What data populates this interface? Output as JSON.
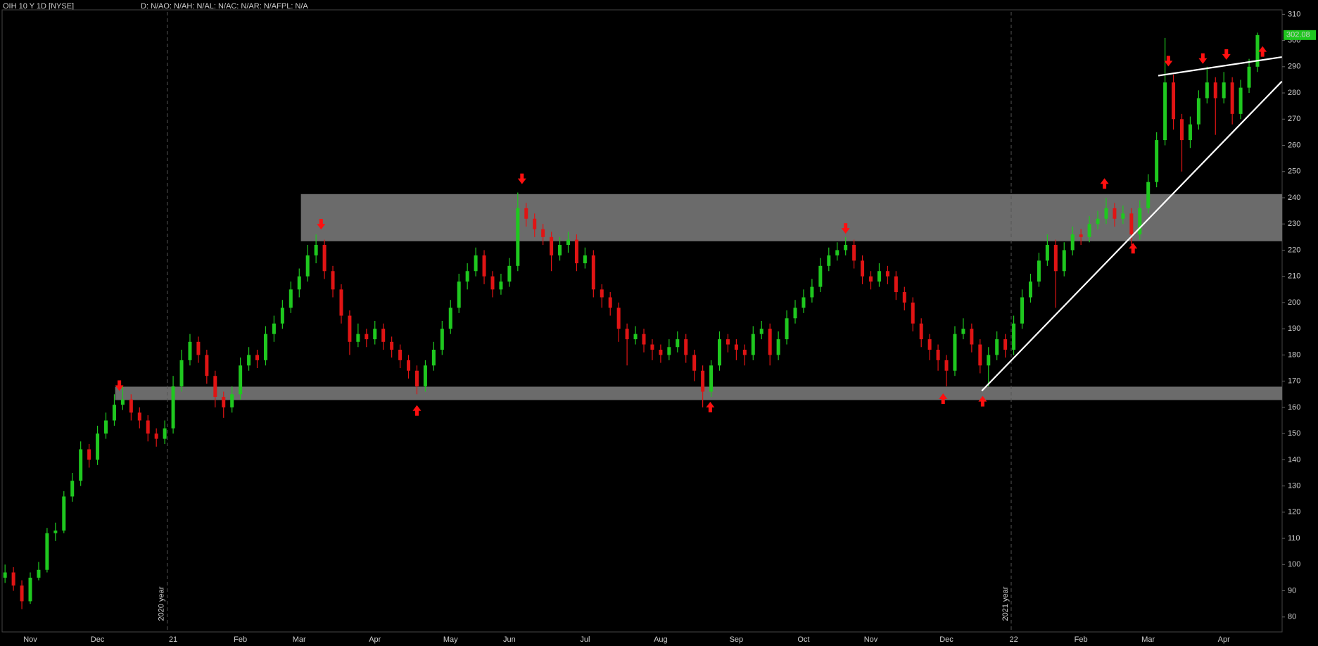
{
  "chart_data": {
    "type": "candlestick",
    "title": "OIH 10 Y 1D [NYSE]",
    "subtitle": "D: N/AO: N/AH: N/AL: N/AC: N/AR: N/AFPL: N/A",
    "categories": [
      null,
      null,
      null,
      "Nov",
      null,
      null,
      null,
      null,
      null,
      null,
      null,
      "Dec",
      null,
      null,
      null,
      null,
      null,
      null,
      null,
      null,
      "21",
      null,
      null,
      null,
      null,
      null,
      null,
      null,
      "Feb",
      null,
      null,
      null,
      null,
      null,
      null,
      "Mar",
      null,
      null,
      null,
      null,
      null,
      null,
      null,
      null,
      "Apr",
      null,
      null,
      null,
      null,
      null,
      null,
      null,
      null,
      "May",
      null,
      null,
      null,
      null,
      null,
      null,
      "Jun",
      null,
      null,
      null,
      null,
      null,
      null,
      null,
      null,
      "Jul",
      null,
      null,
      null,
      null,
      null,
      null,
      null,
      null,
      "Aug",
      null,
      null,
      null,
      null,
      null,
      null,
      null,
      null,
      "Sep",
      null,
      null,
      null,
      null,
      null,
      null,
      null,
      "Oct",
      null,
      null,
      null,
      null,
      null,
      null,
      null,
      "Nov",
      null,
      null,
      null,
      null,
      null,
      null,
      null,
      null,
      "Dec",
      null,
      null,
      null,
      null,
      null,
      null,
      null,
      "22",
      null,
      null,
      null,
      null,
      null,
      null,
      null,
      "Feb",
      null,
      null,
      null,
      null,
      null,
      null,
      null,
      "Mar",
      null,
      null,
      null,
      null,
      null,
      null,
      null,
      null,
      "Apr",
      null,
      null,
      null,
      null
    ],
    "open": [
      95,
      97,
      92,
      86,
      95,
      98,
      112,
      113,
      126,
      132,
      144,
      140,
      150,
      155,
      161,
      163,
      158,
      155,
      150,
      148,
      152,
      168,
      178,
      185,
      180,
      172,
      164,
      160,
      165,
      176,
      180,
      178,
      188,
      192,
      198,
      205,
      210,
      218,
      222,
      212,
      205,
      195,
      185,
      188,
      186,
      190,
      185,
      182,
      178,
      174,
      168,
      176,
      182,
      190,
      198,
      208,
      212,
      218,
      210,
      205,
      208,
      214,
      236,
      232,
      228,
      225,
      218,
      222,
      224,
      215,
      218,
      205,
      202,
      198,
      190,
      186,
      188,
      184,
      182,
      180,
      183,
      186,
      180,
      174,
      166,
      176,
      186,
      184,
      182,
      180,
      188,
      190,
      180,
      186,
      194,
      198,
      202,
      206,
      214,
      218,
      220,
      222,
      216,
      210,
      208,
      212,
      210,
      204,
      200,
      192,
      186,
      182,
      178,
      174,
      188,
      190,
      184,
      176,
      180,
      186,
      182,
      192,
      202,
      208,
      216,
      222,
      212,
      220,
      226,
      225,
      230,
      232,
      236,
      232,
      234,
      226,
      236,
      246,
      262,
      284,
      270,
      262,
      268,
      278,
      284,
      278,
      284,
      272,
      282,
      290
    ],
    "high": [
      100,
      99,
      94,
      97,
      101,
      114,
      116,
      128,
      135,
      147,
      146,
      153,
      158,
      165,
      168,
      165,
      160,
      157,
      152,
      155,
      172,
      182,
      188,
      187,
      182,
      174,
      166,
      168,
      179,
      183,
      182,
      191,
      195,
      201,
      208,
      213,
      222,
      226,
      224,
      214,
      207,
      197,
      192,
      190,
      193,
      192,
      187,
      184,
      180,
      176,
      178,
      185,
      193,
      201,
      211,
      215,
      221,
      220,
      212,
      211,
      217,
      242,
      238,
      234,
      230,
      227,
      225,
      227,
      226,
      221,
      220,
      207,
      204,
      200,
      192,
      191,
      190,
      186,
      184,
      186,
      189,
      188,
      182,
      176,
      178,
      189,
      188,
      186,
      184,
      191,
      193,
      192,
      189,
      197,
      201,
      205,
      209,
      217,
      221,
      223,
      225,
      224,
      218,
      212,
      215,
      214,
      212,
      206,
      202,
      194,
      188,
      184,
      180,
      191,
      194,
      192,
      186,
      183,
      189,
      188,
      195,
      205,
      211,
      219,
      226,
      224,
      223,
      229,
      228,
      233,
      235,
      240,
      238,
      237,
      236,
      239,
      249,
      265,
      301,
      287,
      272,
      271,
      281,
      290,
      286,
      288,
      286,
      285,
      293,
      303
    ],
    "low": [
      93,
      90,
      83,
      85,
      94,
      97,
      109,
      112,
      124,
      130,
      137,
      138,
      148,
      153,
      159,
      155,
      152,
      147,
      145,
      146,
      150,
      166,
      176,
      177,
      169,
      160,
      156,
      158,
      163,
      174,
      175,
      176,
      185,
      190,
      196,
      202,
      208,
      215,
      209,
      202,
      192,
      180,
      183,
      183,
      184,
      182,
      179,
      175,
      171,
      165,
      166,
      174,
      180,
      188,
      196,
      205,
      210,
      207,
      202,
      203,
      206,
      212,
      229,
      225,
      222,
      212,
      216,
      219,
      212,
      213,
      202,
      198,
      195,
      185,
      176,
      184,
      181,
      178,
      177,
      178,
      181,
      177,
      170,
      160,
      164,
      174,
      181,
      178,
      176,
      178,
      186,
      176,
      178,
      184,
      192,
      196,
      200,
      204,
      212,
      216,
      218,
      213,
      207,
      205,
      206,
      207,
      201,
      197,
      189,
      183,
      178,
      174,
      168,
      172,
      186,
      181,
      173,
      168,
      178,
      179,
      180,
      190,
      200,
      206,
      214,
      198,
      210,
      218,
      222,
      223,
      228,
      230,
      229,
      230,
      222,
      224,
      234,
      244,
      260,
      266,
      250,
      259,
      266,
      276,
      264,
      276,
      268,
      270,
      280,
      288
    ],
    "close": [
      97,
      92,
      86,
      95,
      98,
      112,
      113,
      126,
      132,
      144,
      140,
      150,
      155,
      161,
      163,
      158,
      155,
      150,
      148,
      152,
      168,
      178,
      185,
      180,
      172,
      164,
      160,
      165,
      176,
      180,
      178,
      188,
      192,
      198,
      205,
      210,
      218,
      222,
      212,
      205,
      195,
      185,
      188,
      186,
      190,
      185,
      182,
      178,
      174,
      168,
      176,
      182,
      190,
      198,
      208,
      212,
      218,
      210,
      205,
      208,
      214,
      236,
      232,
      228,
      225,
      218,
      222,
      224,
      215,
      218,
      205,
      202,
      198,
      190,
      186,
      188,
      184,
      182,
      180,
      183,
      186,
      180,
      174,
      166,
      176,
      186,
      184,
      182,
      180,
      188,
      190,
      180,
      186,
      194,
      198,
      202,
      206,
      214,
      218,
      220,
      222,
      216,
      210,
      208,
      212,
      210,
      204,
      200,
      192,
      186,
      182,
      178,
      174,
      188,
      190,
      184,
      176,
      180,
      186,
      182,
      192,
      202,
      208,
      216,
      222,
      212,
      220,
      226,
      225,
      230,
      232,
      236,
      232,
      234,
      226,
      236,
      246,
      262,
      284,
      270,
      262,
      268,
      278,
      284,
      278,
      284,
      272,
      282,
      290,
      302.08
    ],
    "up_color": "#1fc81f",
    "down_color": "#e01414",
    "zone_color": "#6b6b6b",
    "ylim": [
      74.3,
      310.9
    ],
    "yticks": [
      80,
      90,
      100,
      110,
      120,
      130,
      140,
      150,
      160,
      170,
      180,
      190,
      200,
      210,
      220,
      230,
      240,
      250,
      260,
      270,
      280,
      290,
      300,
      310
    ],
    "zones": [
      {
        "low": 223.4,
        "high": 241.4,
        "start": 35.2
      },
      {
        "low": 162.8,
        "high": 167.9,
        "start": 13.1
      }
    ],
    "trendlines": [
      {
        "x": [
          116.2,
          151.9
        ],
        "y": [
          166.3,
          284.4
        ]
      },
      {
        "x": [
          137.2,
          151.9
        ],
        "y": [
          286.6,
          293.7
        ]
      }
    ],
    "year_labels": [
      "2020 year",
      "2021 year"
    ]
  }
}
